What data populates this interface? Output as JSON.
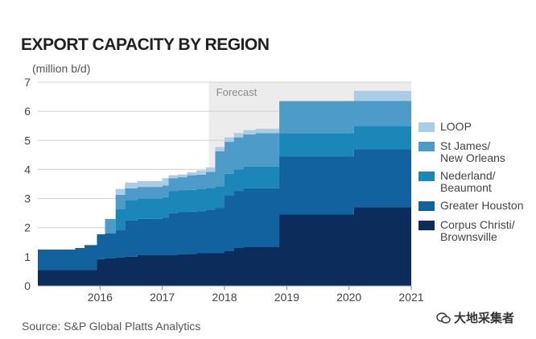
{
  "title": "EXPORT CAPACITY BY REGION",
  "unit_label": "(million b/d)",
  "source": "Source: S&P Global Platts Analytics",
  "watermark": "大地采集者",
  "forecast_label": "Forecast",
  "chart_data": {
    "type": "area",
    "stacked": true,
    "step": true,
    "ylim": [
      0,
      7
    ],
    "yticks": [
      0,
      1,
      2,
      3,
      4,
      5,
      6,
      7
    ],
    "xlim": [
      2015.0,
      2021.0
    ],
    "xticks": [
      2016,
      2017,
      2018,
      2019,
      2020,
      2021
    ],
    "grid": true,
    "forecast_range": [
      2017.75,
      2021.0
    ],
    "x": [
      2015.0,
      2015.25,
      2015.4,
      2015.6,
      2015.75,
      2015.95,
      2016.08,
      2016.25,
      2016.4,
      2016.6,
      2016.75,
      2016.92,
      2017.0,
      2017.1,
      2017.25,
      2017.4,
      2017.55,
      2017.7,
      2017.85,
      2018.0,
      2018.15,
      2018.3,
      2018.5,
      2018.7,
      2018.83,
      2018.88,
      2019.0,
      2019.5,
      2019.75,
      2020.0,
      2020.08,
      2020.5,
      2021.0
    ],
    "series": [
      {
        "name": "Corpus Christi/ Brownsville",
        "color": "#0c2c5c",
        "values": [
          0.55,
          0.55,
          0.55,
          0.55,
          0.55,
          0.92,
          0.95,
          0.98,
          1.0,
          1.05,
          1.05,
          1.05,
          1.05,
          1.05,
          1.08,
          1.1,
          1.12,
          1.12,
          1.12,
          1.2,
          1.3,
          1.35,
          1.35,
          1.35,
          1.35,
          2.45,
          2.45,
          2.45,
          2.45,
          2.45,
          2.7,
          2.7,
          2.7
        ]
      },
      {
        "name": "Greater Houston",
        "color": "#11629e",
        "values": [
          0.7,
          0.7,
          0.7,
          0.75,
          0.85,
          0.85,
          0.85,
          0.95,
          1.25,
          1.25,
          1.25,
          1.25,
          1.3,
          1.45,
          1.45,
          1.45,
          1.45,
          1.5,
          1.55,
          1.9,
          1.95,
          2.0,
          2.0,
          2.0,
          2.0,
          2.0,
          2.0,
          2.0,
          2.0,
          2.0,
          2.0,
          2.0,
          2.0
        ]
      },
      {
        "name": "Nederland/ Beaumont",
        "color": "#1b87b8",
        "values": [
          0,
          0,
          0,
          0,
          0,
          0,
          0,
          0.7,
          0.7,
          0.7,
          0.7,
          0.7,
          0.7,
          0.75,
          0.75,
          0.75,
          0.75,
          0.75,
          0.75,
          0.75,
          0.75,
          0.75,
          0.75,
          0.75,
          0.75,
          0.8,
          0.8,
          0.8,
          0.8,
          0.8,
          0.8,
          0.8,
          0.8
        ]
      },
      {
        "name": "St James/ New Orleans",
        "color": "#4c9bc9",
        "values": [
          0,
          0,
          0,
          0,
          0,
          0,
          0.5,
          0.5,
          0.4,
          0.4,
          0.4,
          0.4,
          0.4,
          0.45,
          0.45,
          0.5,
          0.5,
          0.55,
          1.2,
          1.1,
          1.1,
          1.1,
          1.15,
          1.15,
          1.15,
          1.1,
          1.1,
          1.1,
          1.1,
          1.1,
          0.85,
          0.85,
          0.85
        ]
      },
      {
        "name": "LOOP",
        "color": "#a9cde6",
        "values": [
          0,
          0,
          0,
          0,
          0,
          0,
          0,
          0.2,
          0.2,
          0.2,
          0.2,
          0.2,
          0.25,
          0.1,
          0.1,
          0.1,
          0.15,
          0.15,
          0.15,
          0.15,
          0.15,
          0.15,
          0.15,
          0.15,
          0.15,
          0,
          0,
          0,
          0,
          0,
          0.35,
          0.35,
          0.35
        ]
      }
    ]
  }
}
